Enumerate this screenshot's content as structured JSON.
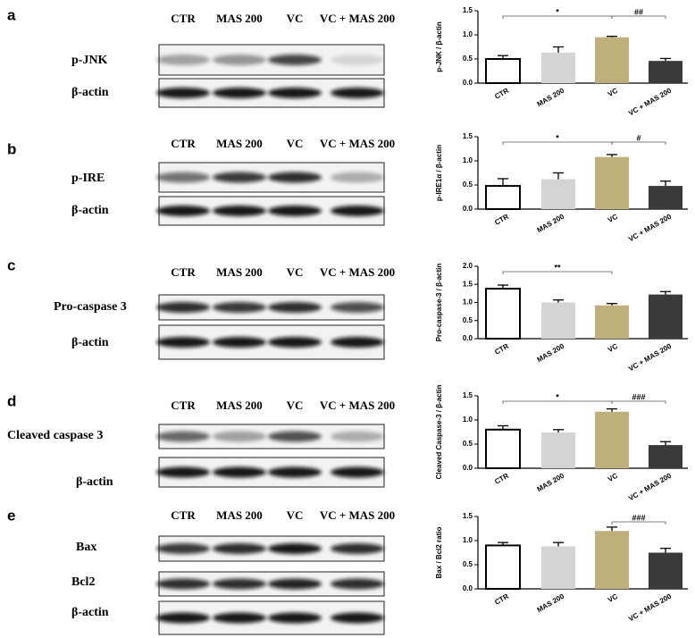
{
  "panels": [
    {
      "letter": "a",
      "lanes": [
        "CTR",
        "MAS 200",
        "VC",
        "VC + MAS 200"
      ],
      "blots": [
        "p-JNK",
        "β-actin"
      ]
    },
    {
      "letter": "b",
      "lanes": [
        "CTR",
        "MAS 200",
        "VC",
        "VC + MAS 200"
      ],
      "blots": [
        "p-IRE",
        "β-actin"
      ]
    },
    {
      "letter": "c",
      "lanes": [
        "CTR",
        "MAS 200",
        "VC",
        "VC + MAS 200"
      ],
      "blots": [
        "Pro-caspase 3",
        "β-actin"
      ]
    },
    {
      "letter": "d",
      "lanes": [
        "CTR",
        "MAS 200",
        "VC",
        "VC + MAS 200"
      ],
      "blots": [
        "Cleaved caspase 3",
        "β-actin"
      ]
    },
    {
      "letter": "e",
      "lanes": [
        "CTR",
        "MAS 200",
        "VC",
        "VC + MAS 200"
      ],
      "blots": [
        "Bax",
        "Bcl2",
        "β-actin"
      ]
    }
  ],
  "chart_data": [
    {
      "type": "bar",
      "y_label": "p-JNK / β-actin",
      "categories": [
        "CTR",
        "MAS 200",
        "VC",
        "VC + MAS 200"
      ],
      "values": [
        0.5,
        0.63,
        0.95,
        0.46
      ],
      "errors": [
        0.07,
        0.12,
        0.02,
        0.05
      ],
      "colors": [
        "#ffffff",
        "#d4d4d4",
        "#bfb07a",
        "#3a3a3a"
      ],
      "ylim": [
        0,
        1.5
      ],
      "yticks": [
        {
          "value": 0,
          "label": "0.0"
        },
        0.5,
        {
          "value": 1,
          "label": "1.0"
        },
        1.5
      ],
      "annotations": [
        {
          "text": "*",
          "categories": [
            "CTR",
            "VC"
          ]
        },
        {
          "text": "##",
          "categories": [
            "VC",
            "VC + MAS 200"
          ]
        }
      ]
    },
    {
      "type": "bar",
      "y_label": "p-IRE1α / β-actin",
      "categories": [
        "CTR",
        "MAS 200",
        "VC",
        "VC + MAS 200"
      ],
      "values": [
        0.48,
        0.62,
        1.08,
        0.48
      ],
      "errors": [
        0.15,
        0.13,
        0.05,
        0.1
      ],
      "colors": [
        "#ffffff",
        "#d4d4d4",
        "#bfb07a",
        "#3a3a3a"
      ],
      "ylim": [
        0,
        1.5
      ],
      "yticks": [
        {
          "value": 0,
          "label": "0.0"
        },
        0.5,
        {
          "value": 1,
          "label": "1.0"
        },
        1.5
      ],
      "annotations": [
        {
          "text": "*",
          "categories": [
            "CTR",
            "VC"
          ]
        },
        {
          "text": "#",
          "categories": [
            "VC",
            "VC + MAS 200"
          ]
        }
      ]
    },
    {
      "type": "bar",
      "y_label": "Pro-caspase-3 / β-actin",
      "categories": [
        "CTR",
        "MAS 200",
        "VC",
        "VC + MAS 200"
      ],
      "values": [
        1.38,
        1.0,
        0.92,
        1.22
      ],
      "errors": [
        0.1,
        0.07,
        0.05,
        0.08
      ],
      "colors": [
        "#ffffff",
        "#d4d4d4",
        "#bfb07a",
        "#3a3a3a"
      ],
      "ylim": [
        0,
        2
      ],
      "yticks": [
        {
          "value": 0,
          "label": "0.0"
        },
        0.5,
        {
          "value": 1,
          "label": "1.0"
        },
        1.5,
        {
          "value": 2,
          "label": "2.0"
        }
      ],
      "annotations": [
        {
          "text": "**",
          "categories": [
            "CTR",
            "VC"
          ]
        }
      ]
    },
    {
      "type": "bar",
      "y_label": "Cleaved Caspase-3 / β-actin",
      "categories": [
        "CTR",
        "MAS 200",
        "VC",
        "VC + MAS 200"
      ],
      "values": [
        0.8,
        0.74,
        1.17,
        0.48
      ],
      "errors": [
        0.08,
        0.06,
        0.06,
        0.07
      ],
      "colors": [
        "#ffffff",
        "#d4d4d4",
        "#bfb07a",
        "#3a3a3a"
      ],
      "ylim": [
        0,
        1.5
      ],
      "yticks": [
        {
          "value": 0,
          "label": "0.0"
        },
        0.5,
        {
          "value": 1,
          "label": "1.0"
        },
        1.5
      ],
      "annotations": [
        {
          "text": "*",
          "categories": [
            "CTR",
            "VC"
          ]
        },
        {
          "text": "###",
          "categories": [
            "VC",
            "VC + MAS 200"
          ]
        }
      ]
    },
    {
      "type": "bar",
      "y_label": "Bax / Bcl2 ratio",
      "categories": [
        "CTR",
        "MAS 200",
        "VC",
        "VC + MAS 200"
      ],
      "values": [
        0.9,
        0.88,
        1.2,
        0.75
      ],
      "errors": [
        0.06,
        0.08,
        0.08,
        0.09
      ],
      "colors": [
        "#ffffff",
        "#d4d4d4",
        "#bfb07a",
        "#3a3a3a"
      ],
      "ylim": [
        0,
        1.5
      ],
      "yticks": [
        {
          "value": 0,
          "label": "0.0"
        },
        0.5,
        {
          "value": 1,
          "label": "1.0"
        },
        1.5
      ],
      "annotations": [
        {
          "text": "###",
          "categories": [
            "VC",
            "VC + MAS 200"
          ]
        }
      ]
    }
  ]
}
